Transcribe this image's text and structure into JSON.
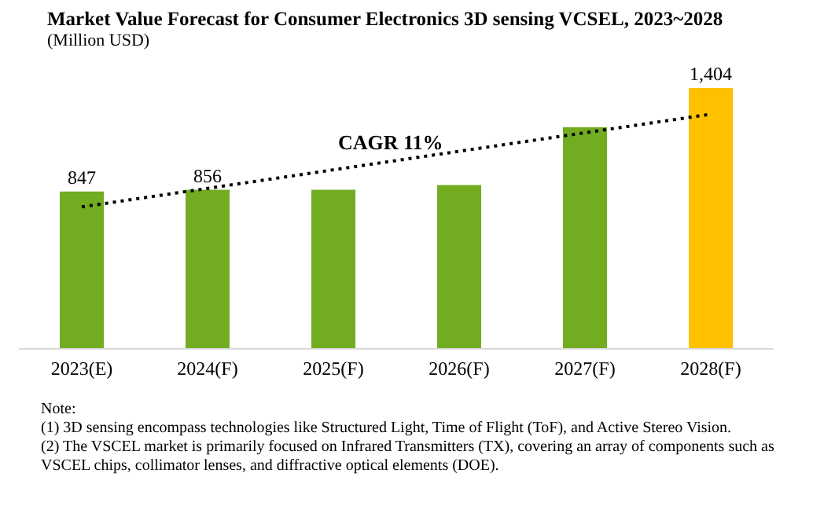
{
  "chart_data": {
    "type": "bar",
    "title": "Market Value Forecast for Consumer Electronics 3D sensing VCSEL, 2023~2028",
    "subtitle": "(Million USD)",
    "categories": [
      "2023(E)",
      "2024(F)",
      "2025(F)",
      "2026(F)",
      "2027(F)",
      "2028(F)"
    ],
    "series": [
      {
        "values": [
          847,
          856,
          856,
          882,
          1193,
          1404
        ],
        "colors": [
          "#72ac21",
          "#72ac21",
          "#72ac21",
          "#72ac21",
          "#72ac21",
          "#ffc000"
        ],
        "value_labels": [
          "847",
          "856",
          null,
          null,
          null,
          "1,404"
        ]
      },
      {
        "type": "line",
        "values": [
          764,
          null,
          null,
          null,
          null,
          1263
        ],
        "color": "#000000",
        "line_style": "dotted"
      }
    ],
    "annotations": [
      "CAGR 11%",
      "Note:",
      "(1) 3D sensing encompass technologies like Structured Light, Time of Flight (ToF), and Active Stereo Vision.",
      "(2) The VSCEL market is primarily focused on Infrared Transmitters (TX), covering an array of components such as VSCEL chips, collimator lenses, and diffractive optical elements (DOE)."
    ],
    "grid": false,
    "legend": false
  }
}
